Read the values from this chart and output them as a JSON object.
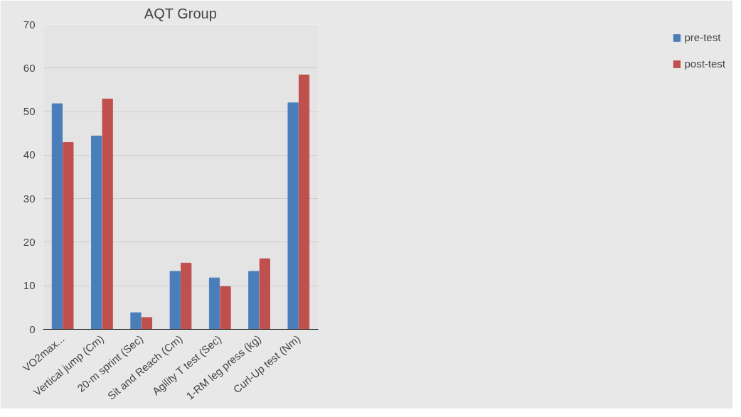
{
  "chart_data": {
    "type": "bar",
    "title": "AQT Group",
    "categories": [
      "VO2max...",
      "Vertical jump (Cm)",
      "20-m sprint (Sec)",
      "Sit and Reach (Cm)",
      "Agility T test (Sec)",
      "1-RM leg press (kg)",
      "Curl-Up test (Nm)"
    ],
    "series": [
      {
        "name": "pre-test",
        "color": "#4a7ebb",
        "values": [
          51.8,
          44.4,
          3.8,
          13.3,
          11.8,
          13.3,
          52.0
        ]
      },
      {
        "name": "post-test",
        "color": "#c0504d",
        "values": [
          42.9,
          52.9,
          2.7,
          15.2,
          9.8,
          16.2,
          58.4
        ]
      }
    ],
    "ylim": [
      0,
      70
    ],
    "yticks": [
      0,
      10,
      20,
      30,
      40,
      50,
      60,
      70
    ],
    "grid": "y",
    "legend": "right"
  }
}
